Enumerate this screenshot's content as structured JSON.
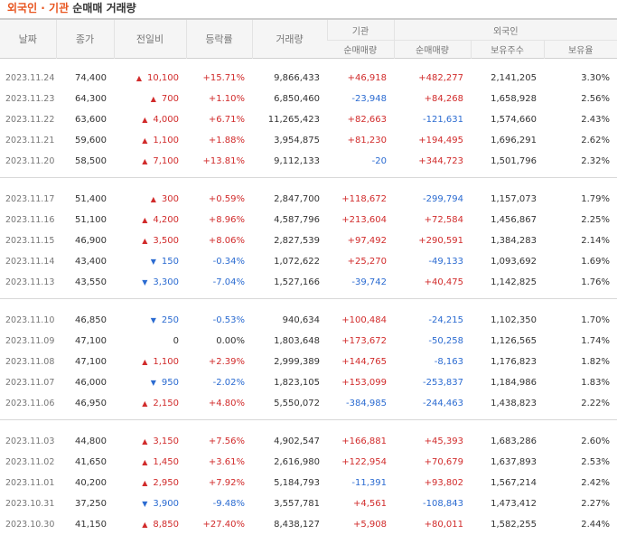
{
  "title": {
    "part1": "외국인 · 기관",
    "part2": " 순매매 거래량"
  },
  "headers": {
    "date": "날짜",
    "close": "종가",
    "change": "전일비",
    "rate": "등락률",
    "volume": "거래량",
    "institution": "기관",
    "inst_net": "순매매량",
    "foreign": "외국인",
    "for_net": "순매매량",
    "for_shares": "보유주수",
    "for_ratio": "보유율"
  },
  "icons": {
    "up": "triangle-up-icon",
    "down": "triangle-down-icon"
  },
  "colors": {
    "up": "#d12b2b",
    "down": "#2b6bd1",
    "accent": "#e8541e"
  },
  "groups": [
    [
      {
        "date": "2023.11.24",
        "close": "74,400",
        "change": "10,100",
        "dir": "up",
        "rate": "+15.71%",
        "volume": "9,866,433",
        "inst": "+46,918",
        "frn": "+482,277",
        "shares": "2,141,205",
        "ratio": "3.30%"
      },
      {
        "date": "2023.11.23",
        "close": "64,300",
        "change": "700",
        "dir": "up",
        "rate": "+1.10%",
        "volume": "6,850,460",
        "inst": "-23,948",
        "frn": "+84,268",
        "shares": "1,658,928",
        "ratio": "2.56%"
      },
      {
        "date": "2023.11.22",
        "close": "63,600",
        "change": "4,000",
        "dir": "up",
        "rate": "+6.71%",
        "volume": "11,265,423",
        "inst": "+82,663",
        "frn": "-121,631",
        "shares": "1,574,660",
        "ratio": "2.43%"
      },
      {
        "date": "2023.11.21",
        "close": "59,600",
        "change": "1,100",
        "dir": "up",
        "rate": "+1.88%",
        "volume": "3,954,875",
        "inst": "+81,230",
        "frn": "+194,495",
        "shares": "1,696,291",
        "ratio": "2.62%"
      },
      {
        "date": "2023.11.20",
        "close": "58,500",
        "change": "7,100",
        "dir": "up",
        "rate": "+13.81%",
        "volume": "9,112,133",
        "inst": "-20",
        "frn": "+344,723",
        "shares": "1,501,796",
        "ratio": "2.32%"
      }
    ],
    [
      {
        "date": "2023.11.17",
        "close": "51,400",
        "change": "300",
        "dir": "up",
        "rate": "+0.59%",
        "volume": "2,847,700",
        "inst": "+118,672",
        "frn": "-299,794",
        "shares": "1,157,073",
        "ratio": "1.79%"
      },
      {
        "date": "2023.11.16",
        "close": "51,100",
        "change": "4,200",
        "dir": "up",
        "rate": "+8.96%",
        "volume": "4,587,796",
        "inst": "+213,604",
        "frn": "+72,584",
        "shares": "1,456,867",
        "ratio": "2.25%"
      },
      {
        "date": "2023.11.15",
        "close": "46,900",
        "change": "3,500",
        "dir": "up",
        "rate": "+8.06%",
        "volume": "2,827,539",
        "inst": "+97,492",
        "frn": "+290,591",
        "shares": "1,384,283",
        "ratio": "2.14%"
      },
      {
        "date": "2023.11.14",
        "close": "43,400",
        "change": "150",
        "dir": "down",
        "rate": "-0.34%",
        "volume": "1,072,622",
        "inst": "+25,270",
        "frn": "-49,133",
        "shares": "1,093,692",
        "ratio": "1.69%"
      },
      {
        "date": "2023.11.13",
        "close": "43,550",
        "change": "3,300",
        "dir": "down",
        "rate": "-7.04%",
        "volume": "1,527,166",
        "inst": "-39,742",
        "frn": "+40,475",
        "shares": "1,142,825",
        "ratio": "1.76%"
      }
    ],
    [
      {
        "date": "2023.11.10",
        "close": "46,850",
        "change": "250",
        "dir": "down",
        "rate": "-0.53%",
        "volume": "940,634",
        "inst": "+100,484",
        "frn": "-24,215",
        "shares": "1,102,350",
        "ratio": "1.70%"
      },
      {
        "date": "2023.11.09",
        "close": "47,100",
        "change": "0",
        "dir": "none",
        "rate": "0.00%",
        "volume": "1,803,648",
        "inst": "+173,672",
        "frn": "-50,258",
        "shares": "1,126,565",
        "ratio": "1.74%"
      },
      {
        "date": "2023.11.08",
        "close": "47,100",
        "change": "1,100",
        "dir": "up",
        "rate": "+2.39%",
        "volume": "2,999,389",
        "inst": "+144,765",
        "frn": "-8,163",
        "shares": "1,176,823",
        "ratio": "1.82%"
      },
      {
        "date": "2023.11.07",
        "close": "46,000",
        "change": "950",
        "dir": "down",
        "rate": "-2.02%",
        "volume": "1,823,105",
        "inst": "+153,099",
        "frn": "-253,837",
        "shares": "1,184,986",
        "ratio": "1.83%"
      },
      {
        "date": "2023.11.06",
        "close": "46,950",
        "change": "2,150",
        "dir": "up",
        "rate": "+4.80%",
        "volume": "5,550,072",
        "inst": "-384,985",
        "frn": "-244,463",
        "shares": "1,438,823",
        "ratio": "2.22%"
      }
    ],
    [
      {
        "date": "2023.11.03",
        "close": "44,800",
        "change": "3,150",
        "dir": "up",
        "rate": "+7.56%",
        "volume": "4,902,547",
        "inst": "+166,881",
        "frn": "+45,393",
        "shares": "1,683,286",
        "ratio": "2.60%"
      },
      {
        "date": "2023.11.02",
        "close": "41,650",
        "change": "1,450",
        "dir": "up",
        "rate": "+3.61%",
        "volume": "2,616,980",
        "inst": "+122,954",
        "frn": "+70,679",
        "shares": "1,637,893",
        "ratio": "2.53%"
      },
      {
        "date": "2023.11.01",
        "close": "40,200",
        "change": "2,950",
        "dir": "up",
        "rate": "+7.92%",
        "volume": "5,184,793",
        "inst": "-11,391",
        "frn": "+93,802",
        "shares": "1,567,214",
        "ratio": "2.42%"
      },
      {
        "date": "2023.10.31",
        "close": "37,250",
        "change": "3,900",
        "dir": "down",
        "rate": "-9.48%",
        "volume": "3,557,781",
        "inst": "+4,561",
        "frn": "-108,843",
        "shares": "1,473,412",
        "ratio": "2.27%"
      },
      {
        "date": "2023.10.30",
        "close": "41,150",
        "change": "8,850",
        "dir": "up",
        "rate": "+27.40%",
        "volume": "8,438,127",
        "inst": "+5,908",
        "frn": "+80,011",
        "shares": "1,582,255",
        "ratio": "2.44%"
      }
    ]
  ]
}
